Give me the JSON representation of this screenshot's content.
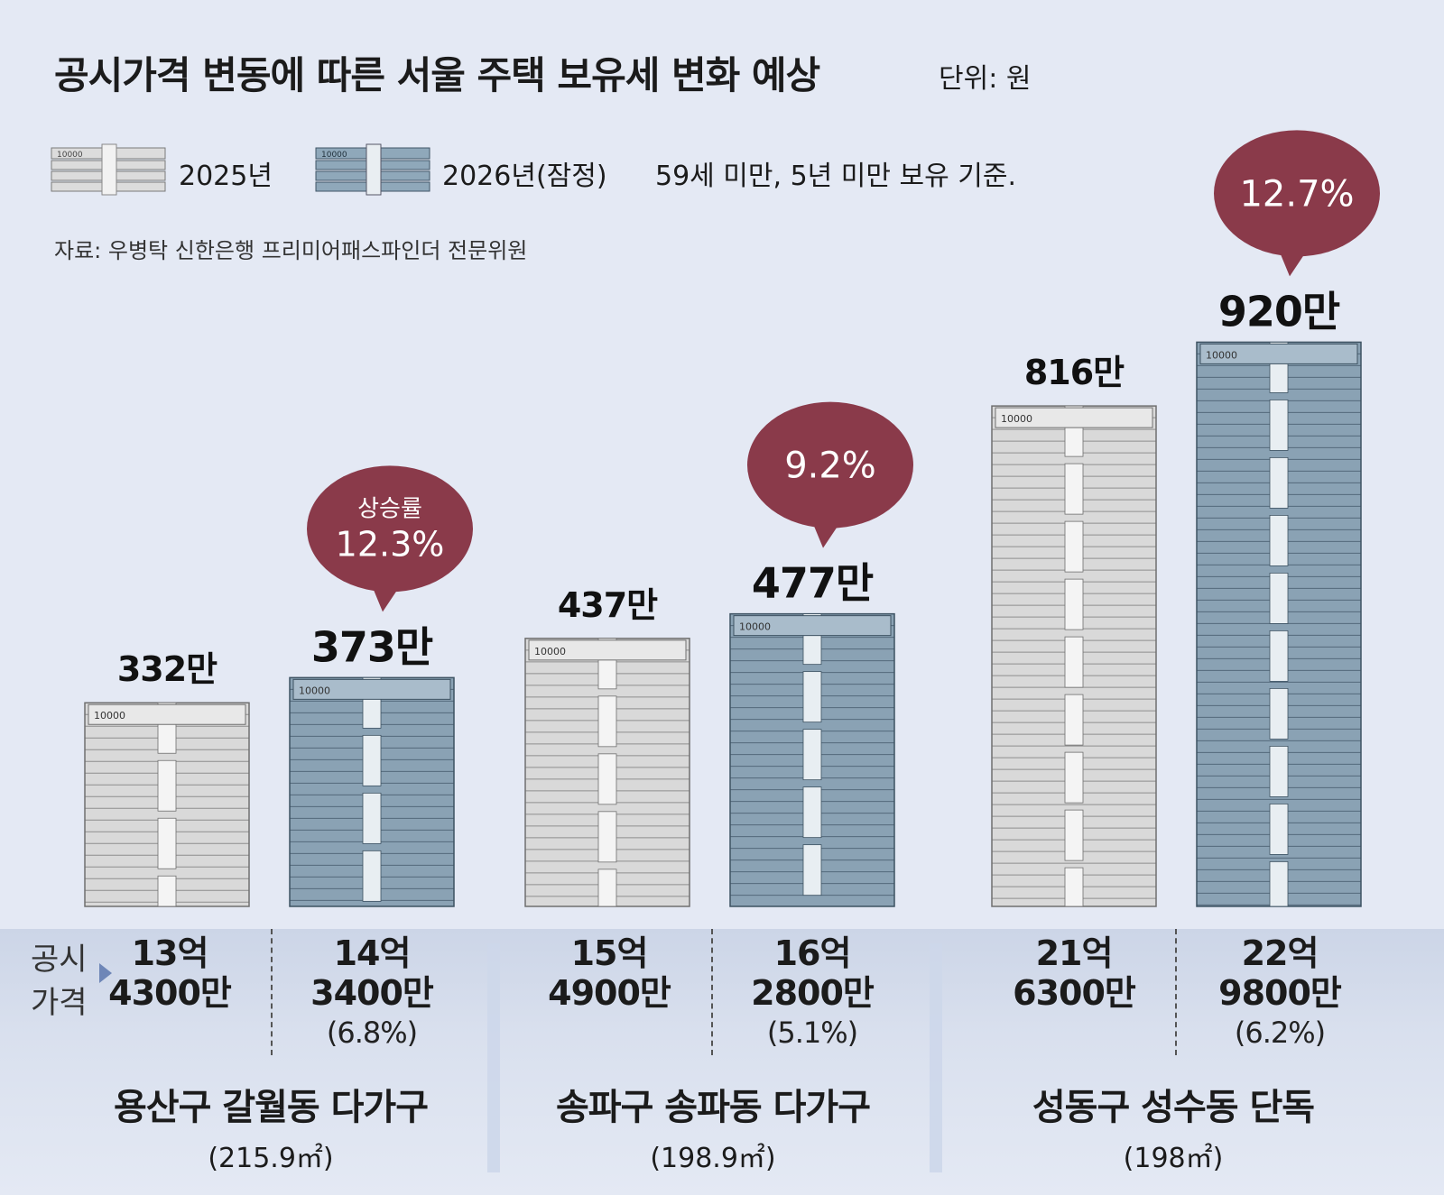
{
  "header": {
    "title": "공시가격 변동에 따른 서울 주택 보유세 변화 예상",
    "unit": "단위: 원"
  },
  "legend": {
    "y2025": "2025년",
    "y2026": "2026년(잠정)",
    "note": "59세 미만, 5년 미만 보유 기준.",
    "icon_2025": "money-stack-gray-icon",
    "icon_2026": "money-stack-blue-icon"
  },
  "source": "자료: 우병탁 신한은행 프리미어패스파인더 전문위원",
  "row_label": {
    "line1": "공시",
    "line2": "가격"
  },
  "colors": {
    "bill_2025": "#d9d9d9",
    "bill_2026": "#8aa2b4",
    "bubble": "#8a3a4a",
    "background": "#e4e9f4"
  },
  "chart_data": {
    "type": "bar",
    "title": "공시가격 변동에 따른 서울 주택 보유세 변화 예상",
    "unit": "원",
    "series": [
      {
        "name": "2025년",
        "values": [
          3320000,
          4370000,
          8160000
        ]
      },
      {
        "name": "2026년(잠정)",
        "values": [
          3730000,
          4770000,
          9200000
        ]
      }
    ],
    "groups": [
      {
        "name": "용산구 갈월동 다가구",
        "area": "(215.9㎡)",
        "bars": [
          {
            "year": "2025년",
            "tax": 3320000,
            "tax_label": "332만",
            "price_line1": "13억",
            "price_line2": "4300만",
            "price_line3": ""
          },
          {
            "year": "2026년(잠정)",
            "tax": 3730000,
            "tax_label": "373만",
            "price_line1": "14억",
            "price_line2": "3400만",
            "price_line3": "(6.8%)"
          }
        ],
        "increase_label": "상승률",
        "increase": "12.3%"
      },
      {
        "name": "송파구 송파동 다가구",
        "area": "(198.9㎡)",
        "bars": [
          {
            "year": "2025년",
            "tax": 4370000,
            "tax_label": "437만",
            "price_line1": "15억",
            "price_line2": "4900만",
            "price_line3": ""
          },
          {
            "year": "2026년(잠정)",
            "tax": 4770000,
            "tax_label": "477만",
            "price_line1": "16억",
            "price_line2": "2800만",
            "price_line3": "(5.1%)"
          }
        ],
        "increase_label": "",
        "increase": "9.2%"
      },
      {
        "name": "성동구 성수동 단독",
        "area": "(198㎡)",
        "bars": [
          {
            "year": "2025년",
            "tax": 8160000,
            "tax_label": "816만",
            "price_line1": "21억",
            "price_line2": "6300만",
            "price_line3": ""
          },
          {
            "year": "2026년(잠정)",
            "tax": 9200000,
            "tax_label": "920만",
            "price_line1": "22억",
            "price_line2": "9800만",
            "price_line3": "(6.2%)"
          }
        ],
        "increase_label": "",
        "increase": "12.7%"
      }
    ]
  }
}
